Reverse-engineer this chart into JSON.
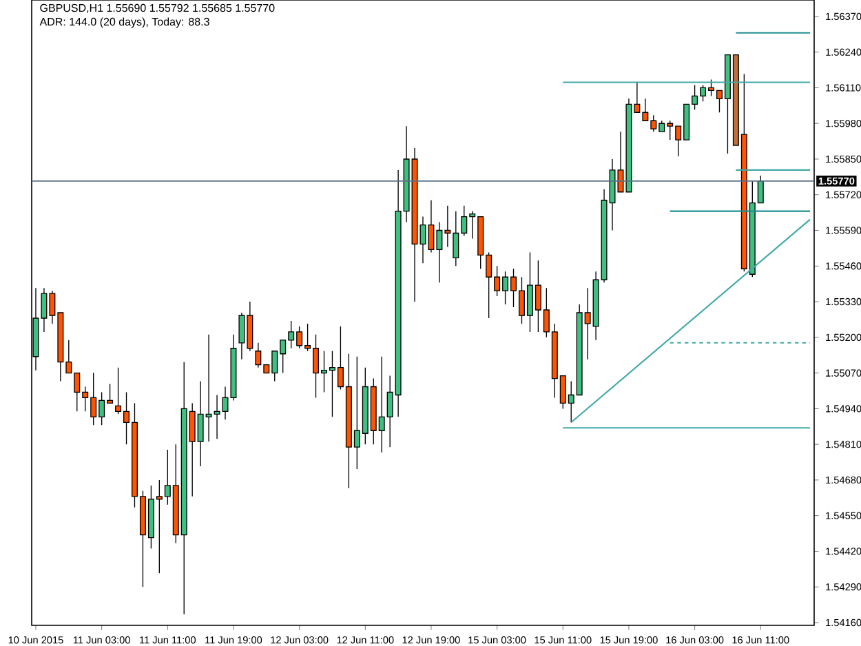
{
  "chart_data": {
    "type": "candlestick",
    "title": "GBPUSD,H1  1.55690 1.55792 1.55685 1.55770",
    "subtitle": "ADR: 144.0 (20 days), Today: 88.3",
    "categories": [
      "10 Jun 2015",
      null,
      null,
      null,
      null,
      null,
      null,
      null,
      "11 Jun 03:00",
      null,
      null,
      null,
      null,
      null,
      null,
      null,
      "11 Jun 11:00",
      null,
      null,
      null,
      null,
      null,
      null,
      null,
      "11 Jun 19:00",
      null,
      null,
      null,
      null,
      null,
      null,
      null,
      "12 Jun 03:00",
      null,
      null,
      null,
      null,
      null,
      null,
      null,
      "12 Jun 11:00",
      null,
      null,
      null,
      null,
      null,
      null,
      null,
      "12 Jun 19:00",
      null,
      null,
      null,
      null,
      null,
      null,
      null,
      "15 Jun 03:00",
      null,
      null,
      null,
      null,
      null,
      null,
      null,
      "15 Jun 11:00",
      null,
      null,
      null,
      null,
      null,
      null,
      null,
      "15 Jun 19:00",
      null,
      null,
      null,
      null,
      null,
      null,
      null,
      "16 Jun 03:00",
      null,
      null,
      null,
      null,
      null,
      null,
      null,
      "16 Jun 11:00",
      null,
      null,
      null,
      null,
      null,
      null
    ],
    "ohlc": [
      [
        1.5513,
        1.5538,
        1.5508,
        1.5527
      ],
      [
        1.5527,
        1.5538,
        1.5522,
        1.5536
      ],
      [
        1.5536,
        1.5537,
        1.5525,
        1.5528
      ],
      [
        1.5529,
        1.5529,
        1.5504,
        1.5511
      ],
      [
        1.5511,
        1.5519,
        1.5507,
        1.5507
      ],
      [
        1.5507,
        1.5507,
        1.5493,
        1.55
      ],
      [
        1.55,
        1.5502,
        1.5493,
        1.5498
      ],
      [
        1.5498,
        1.5507,
        1.5488,
        1.5491
      ],
      [
        1.5491,
        1.55,
        1.5488,
        1.5497
      ],
      [
        1.5497,
        1.5503,
        1.5496,
        1.5496
      ],
      [
        1.5495,
        1.5509,
        1.5492,
        1.5493
      ],
      [
        1.5493,
        1.55,
        1.5481,
        1.5489
      ],
      [
        1.5489,
        1.5496,
        1.5458,
        1.5462
      ],
      [
        1.5462,
        1.5464,
        1.5429,
        1.5448
      ],
      [
        1.5447,
        1.5466,
        1.5443,
        1.5461
      ],
      [
        1.5462,
        1.5468,
        1.5434,
        1.5461
      ],
      [
        1.5462,
        1.5479,
        1.5459,
        1.5466
      ],
      [
        1.5466,
        1.5481,
        1.5445,
        1.5448
      ],
      [
        1.5448,
        1.5511,
        1.5419,
        1.5494
      ],
      [
        1.5493,
        1.5496,
        1.5462,
        1.5482
      ],
      [
        1.5482,
        1.5504,
        1.5473,
        1.5492
      ],
      [
        1.5491,
        1.5521,
        1.5482,
        1.5492
      ],
      [
        1.5492,
        1.5499,
        1.5483,
        1.5493
      ],
      [
        1.5493,
        1.5502,
        1.549,
        1.5498
      ],
      [
        1.5498,
        1.5521,
        1.5497,
        1.5516
      ],
      [
        1.5518,
        1.5529,
        1.5512,
        1.5528
      ],
      [
        1.5528,
        1.5533,
        1.5515,
        1.5516
      ],
      [
        1.5515,
        1.5518,
        1.5509,
        1.551
      ],
      [
        1.551,
        1.551,
        1.5507,
        1.5507
      ],
      [
        1.5507,
        1.5515,
        1.5504,
        1.5515
      ],
      [
        1.5514,
        1.5519,
        1.5507,
        1.5519
      ],
      [
        1.5519,
        1.5526,
        1.5516,
        1.5522
      ],
      [
        1.5522,
        1.5524,
        1.5516,
        1.5517
      ],
      [
        1.5517,
        1.5525,
        1.5515,
        1.5516
      ],
      [
        1.5516,
        1.5521,
        1.5498,
        1.5507
      ],
      [
        1.5507,
        1.5515,
        1.55,
        1.5508
      ],
      [
        1.5508,
        1.5515,
        1.5491,
        1.5509
      ],
      [
        1.5509,
        1.5524,
        1.5501,
        1.5502
      ],
      [
        1.5502,
        1.5514,
        1.5465,
        1.548
      ],
      [
        1.548,
        1.5513,
        1.5472,
        1.5486
      ],
      [
        1.5485,
        1.5509,
        1.5481,
        1.5502
      ],
      [
        1.5502,
        1.5505,
        1.5481,
        1.5486
      ],
      [
        1.5486,
        1.5513,
        1.5478,
        1.5491
      ],
      [
        1.5491,
        1.5506,
        1.548,
        1.55
      ],
      [
        1.5499,
        1.5581,
        1.5491,
        1.5566
      ],
      [
        1.5566,
        1.5597,
        1.5562,
        1.5585
      ],
      [
        1.5585,
        1.5589,
        1.5533,
        1.5554
      ],
      [
        1.5554,
        1.5564,
        1.5547,
        1.5561
      ],
      [
        1.5561,
        1.557,
        1.5551,
        1.5552
      ],
      [
        1.5552,
        1.5562,
        1.554,
        1.5559
      ],
      [
        1.5559,
        1.5568,
        1.5553,
        1.5558
      ],
      [
        1.5549,
        1.5566,
        1.5546,
        1.5558
      ],
      [
        1.5558,
        1.5568,
        1.5557,
        1.5564
      ],
      [
        1.5564,
        1.5566,
        1.5556,
        1.5565
      ],
      [
        1.5564,
        1.5564,
        1.5545,
        1.555
      ],
      [
        1.555,
        1.5551,
        1.5527,
        1.5542
      ],
      [
        1.5542,
        1.5546,
        1.5535,
        1.5537
      ],
      [
        1.5537,
        1.5544,
        1.5532,
        1.5542
      ],
      [
        1.5542,
        1.5545,
        1.5531,
        1.5537
      ],
      [
        1.5537,
        1.5542,
        1.5525,
        1.5528
      ],
      [
        1.5528,
        1.5551,
        1.5522,
        1.5539
      ],
      [
        1.5539,
        1.5548,
        1.5522,
        1.553
      ],
      [
        1.553,
        1.5538,
        1.552,
        1.5522
      ],
      [
        1.5522,
        1.5525,
        1.5498,
        1.5505
      ],
      [
        1.5506,
        1.5506,
        1.5494,
        1.5496
      ],
      [
        1.5496,
        1.5504,
        1.5489,
        1.5499
      ],
      [
        1.5499,
        1.5532,
        1.5499,
        1.5529
      ],
      [
        1.5529,
        1.5538,
        1.5512,
        1.5525
      ],
      [
        1.5524,
        1.5544,
        1.5519,
        1.5541
      ],
      [
        1.5541,
        1.5574,
        1.554,
        1.557
      ],
      [
        1.5569,
        1.5585,
        1.5559,
        1.5581
      ],
      [
        1.5581,
        1.5595,
        1.5573,
        1.5573
      ],
      [
        1.5573,
        1.5607,
        1.5573,
        1.5605
      ],
      [
        1.5605,
        1.5613,
        1.5602,
        1.5602
      ],
      [
        1.5602,
        1.5607,
        1.5599,
        1.5599
      ],
      [
        1.5599,
        1.5601,
        1.5595,
        1.5596
      ],
      [
        1.5595,
        1.5599,
        1.5595,
        1.5598
      ],
      [
        1.5598,
        1.5599,
        1.5592,
        1.5597
      ],
      [
        1.5597,
        1.5597,
        1.5586,
        1.5592
      ],
      [
        1.5592,
        1.5605,
        1.5592,
        1.5605
      ],
      [
        1.5605,
        1.5612,
        1.5603,
        1.5608
      ],
      [
        1.5608,
        1.5612,
        1.5606,
        1.5611
      ],
      [
        1.5611,
        1.5614,
        1.5608,
        1.561
      ],
      [
        1.561,
        1.561,
        1.5602,
        1.5607
      ],
      [
        1.5607,
        1.5623,
        1.5587,
        1.5623
      ],
      [
        1.5623,
        1.5623,
        1.559,
        1.559
      ],
      [
        1.5594,
        1.5616,
        1.5544,
        1.5545
      ],
      [
        1.5543,
        1.5577,
        1.5542,
        1.5569
      ],
      [
        1.5569,
        1.5579,
        1.5569,
        1.5577
      ],
      null,
      null,
      null,
      null,
      null,
      null
    ],
    "colors": [
      "#40c080",
      "#40c080",
      "#ff5500",
      "#ff5500",
      "#ff5500",
      "#ff5500",
      "#ff5500",
      "#ff5500",
      "#40c080",
      "#ff5500",
      "#ff5500",
      "#ff5500",
      "#ff5500",
      "#ff5500",
      "#40c080",
      "#ff5500",
      "#40c080",
      "#ff5500",
      "#40c080",
      "#ff5500",
      "#40c080",
      "#40c080",
      "#40c080",
      "#40c080",
      "#40c080",
      "#40c080",
      "#ff5500",
      "#ff5500",
      "#ff5500",
      "#40c080",
      "#40c080",
      "#40c080",
      "#ff5500",
      "#ff5500",
      "#ff5500",
      "#40c080",
      "#40c080",
      "#ff5500",
      "#ff5500",
      "#40c080",
      "#40c080",
      "#ff5500",
      "#40c080",
      "#40c080",
      "#40c080",
      "#40c080",
      "#ff5500",
      "#40c080",
      "#ff5500",
      "#40c080",
      "#ff5500",
      "#40c080",
      "#40c080",
      "#40c080",
      "#ff5500",
      "#ff5500",
      "#ff5500",
      "#40c080",
      "#ff5500",
      "#ff5500",
      "#40c080",
      "#ff5500",
      "#ff5500",
      "#ff5500",
      "#ff5500",
      "#40c080",
      "#40c080",
      "#ff5500",
      "#40c080",
      "#40c080",
      "#40c080",
      "#ff5500",
      "#40c080",
      "#ff5500",
      "#ff5500",
      "#ff5500",
      "#40c080",
      "#ff5500",
      "#ff5500",
      "#40c080",
      "#40c080",
      "#40c080",
      "#ff5500",
      "#ff5500",
      "#40c080",
      "#c0703a",
      "#ff5500",
      "#40c080",
      "#40c080",
      null,
      null,
      null,
      null,
      null,
      null
    ],
    "series": [
      {
        "type": "line",
        "color": "#40a8a8",
        "values": [
          null,
          null,
          null,
          null,
          null,
          null,
          null,
          null,
          null,
          null,
          null,
          null,
          null,
          null,
          null,
          null,
          null,
          null,
          null,
          null,
          null,
          null,
          null,
          null,
          null,
          null,
          null,
          null,
          null,
          null,
          null,
          null,
          null,
          null,
          null,
          null,
          null,
          null,
          null,
          null,
          null,
          null,
          null,
          null,
          null,
          null,
          null,
          null,
          null,
          null,
          null,
          null,
          null,
          null,
          null,
          null,
          null,
          null,
          null,
          null,
          null,
          null,
          null,
          null,
          1.5613,
          null,
          null,
          null,
          null,
          null,
          null,
          null,
          null,
          null,
          null,
          null,
          null,
          null,
          null,
          null,
          null,
          null,
          null,
          null,
          null,
          null,
          null,
          null,
          null,
          null,
          null,
          null,
          null,
          null,
          1.5613
        ]
      },
      {
        "type": "line",
        "color": "#40a8a8",
        "values": [
          null,
          null,
          null,
          null,
          null,
          null,
          null,
          null,
          null,
          null,
          null,
          null,
          null,
          null,
          null,
          null,
          null,
          null,
          null,
          null,
          null,
          null,
          null,
          null,
          null,
          null,
          null,
          null,
          null,
          null,
          null,
          null,
          null,
          null,
          null,
          null,
          null,
          null,
          null,
          null,
          null,
          null,
          null,
          null,
          null,
          null,
          null,
          null,
          null,
          null,
          null,
          null,
          null,
          null,
          null,
          null,
          null,
          null,
          null,
          null,
          null,
          null,
          null,
          null,
          1.5487,
          null,
          null,
          null,
          null,
          null,
          null,
          null,
          null,
          null,
          null,
          null,
          null,
          null,
          null,
          null,
          null,
          null,
          null,
          null,
          null,
          null,
          null,
          null,
          null,
          null,
          null,
          null,
          null,
          null,
          1.5487
        ]
      },
      {
        "type": "line",
        "color": "#1f8f8f",
        "values": [
          null,
          null,
          null,
          null,
          null,
          null,
          null,
          null,
          null,
          null,
          null,
          null,
          null,
          null,
          null,
          null,
          null,
          null,
          null,
          null,
          null,
          null,
          null,
          null,
          null,
          null,
          null,
          null,
          null,
          null,
          null,
          null,
          null,
          null,
          null,
          null,
          null,
          null,
          null,
          null,
          null,
          null,
          null,
          null,
          null,
          null,
          null,
          null,
          null,
          null,
          null,
          null,
          null,
          null,
          null,
          null,
          null,
          null,
          null,
          null,
          null,
          null,
          null,
          null,
          null,
          null,
          null,
          null,
          null,
          null,
          null,
          null,
          null,
          null,
          null,
          null,
          null,
          null,
          null,
          null,
          null,
          null,
          null,
          null,
          null,
          1.5631,
          null,
          null,
          null,
          null,
          null,
          null,
          null,
          null,
          1.5631
        ]
      },
      {
        "type": "line",
        "color": "#40a8a8",
        "values": [
          null,
          null,
          null,
          null,
          null,
          null,
          null,
          null,
          null,
          null,
          null,
          null,
          null,
          null,
          null,
          null,
          null,
          null,
          null,
          null,
          null,
          null,
          null,
          null,
          null,
          null,
          null,
          null,
          null,
          null,
          null,
          null,
          null,
          null,
          null,
          null,
          null,
          null,
          null,
          null,
          null,
          null,
          null,
          null,
          null,
          null,
          null,
          null,
          null,
          null,
          null,
          null,
          null,
          null,
          null,
          null,
          null,
          null,
          null,
          null,
          null,
          null,
          null,
          null,
          null,
          null,
          null,
          null,
          null,
          null,
          null,
          null,
          null,
          null,
          null,
          null,
          null,
          null,
          null,
          null,
          null,
          null,
          null,
          null,
          null,
          1.5581,
          null,
          null,
          null,
          null,
          null,
          null,
          null,
          null,
          1.5581
        ]
      },
      {
        "type": "line",
        "color": "#40a8a8",
        "values": [
          null,
          null,
          null,
          null,
          null,
          null,
          null,
          null,
          null,
          null,
          null,
          null,
          null,
          null,
          null,
          null,
          null,
          null,
          null,
          null,
          null,
          null,
          null,
          null,
          null,
          null,
          null,
          null,
          null,
          null,
          null,
          null,
          null,
          null,
          null,
          null,
          null,
          null,
          null,
          null,
          null,
          null,
          null,
          null,
          null,
          null,
          null,
          null,
          null,
          null,
          null,
          null,
          null,
          null,
          null,
          null,
          null,
          null,
          null,
          null,
          null,
          null,
          null,
          null,
          null,
          1.5489,
          null,
          null,
          null,
          null,
          null,
          null,
          null,
          null,
          null,
          null,
          null,
          null,
          null,
          null,
          null,
          null,
          null,
          null,
          null,
          null,
          null,
          null,
          null,
          null,
          null,
          null,
          null,
          null,
          1.5563
        ]
      },
      {
        "type": "line",
        "color": "#1f8f8f",
        "values": [
          null,
          null,
          null,
          null,
          null,
          null,
          null,
          null,
          null,
          null,
          null,
          null,
          null,
          null,
          null,
          null,
          null,
          null,
          null,
          null,
          null,
          null,
          null,
          null,
          null,
          null,
          null,
          null,
          null,
          null,
          null,
          null,
          null,
          null,
          null,
          null,
          null,
          null,
          null,
          null,
          null,
          null,
          null,
          null,
          null,
          null,
          null,
          null,
          null,
          null,
          null,
          null,
          null,
          null,
          null,
          null,
          null,
          null,
          null,
          null,
          null,
          null,
          null,
          null,
          null,
          null,
          null,
          null,
          null,
          null,
          null,
          null,
          null,
          null,
          null,
          null,
          null,
          1.5566,
          null,
          null,
          null,
          null,
          null,
          null,
          null,
          null,
          null,
          null,
          null,
          null,
          null,
          null,
          null,
          null,
          1.5566
        ]
      },
      {
        "type": "line",
        "color": "#40a8a8",
        "line_style": "dashed",
        "values": [
          null,
          null,
          null,
          null,
          null,
          null,
          null,
          null,
          null,
          null,
          null,
          null,
          null,
          null,
          null,
          null,
          null,
          null,
          null,
          null,
          null,
          null,
          null,
          null,
          null,
          null,
          null,
          null,
          null,
          null,
          null,
          null,
          null,
          null,
          null,
          null,
          null,
          null,
          null,
          null,
          null,
          null,
          null,
          null,
          null,
          null,
          null,
          null,
          null,
          null,
          null,
          null,
          null,
          null,
          null,
          null,
          null,
          null,
          null,
          null,
          null,
          null,
          null,
          null,
          null,
          null,
          null,
          null,
          null,
          null,
          null,
          null,
          null,
          null,
          null,
          null,
          null,
          1.5518,
          null,
          null,
          null,
          null,
          null,
          null,
          null,
          null,
          null,
          null,
          null,
          null,
          null,
          null,
          null,
          null,
          1.5518
        ]
      }
    ],
    "ref_lines": [
      {
        "axis": "y",
        "value": 1.5577,
        "label": "1.55770",
        "color": "#5a7088"
      }
    ],
    "ylim": [
      1.5415,
      1.5643
    ],
    "yticks": [
      {
        "value": 1.5416,
        "label": "1.54160"
      },
      {
        "value": 1.5429,
        "label": "1.54290"
      },
      {
        "value": 1.5442,
        "label": "1.54420"
      },
      {
        "value": 1.5455,
        "label": "1.54550"
      },
      {
        "value": 1.5468,
        "label": "1.54680"
      },
      {
        "value": 1.5481,
        "label": "1.54810"
      },
      {
        "value": 1.5494,
        "label": "1.54940"
      },
      {
        "value": 1.5507,
        "label": "1.55070"
      },
      {
        "value": 1.552,
        "label": "1.55200"
      },
      {
        "value": 1.5533,
        "label": "1.55330"
      },
      {
        "value": 1.5546,
        "label": "1.55460"
      },
      {
        "value": 1.5559,
        "label": "1.55590"
      },
      {
        "value": 1.5572,
        "label": "1.55720"
      },
      {
        "value": 1.5585,
        "label": "1.55850"
      },
      {
        "value": 1.5598,
        "label": "1.55980"
      },
      {
        "value": 1.5611,
        "label": "1.56110"
      },
      {
        "value": 1.5624,
        "label": "1.56240"
      },
      {
        "value": 1.5637,
        "label": "1.56370"
      }
    ],
    "marker": "none"
  }
}
